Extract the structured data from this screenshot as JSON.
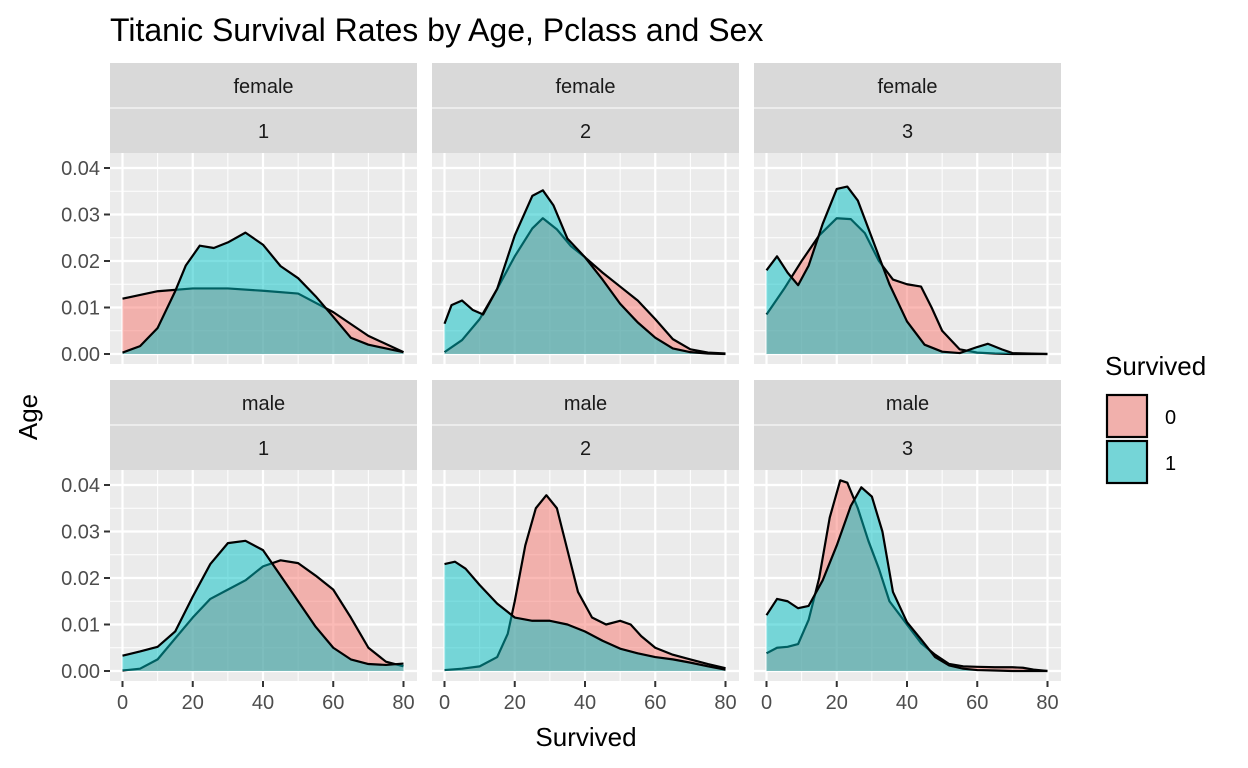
{
  "chart_data": {
    "type": "area",
    "subtype": "faceted density",
    "title": "Titanic Survival Rates by Age, Pclass and Sex",
    "xlabel": "Survived",
    "ylabel": "Age",
    "xlim": [
      0,
      80
    ],
    "ylim": [
      0,
      0.04
    ],
    "x_ticks": [
      0,
      20,
      40,
      60,
      80
    ],
    "y_ticks": [
      0,
      0.01,
      0.02,
      0.03,
      0.04
    ],
    "y_tick_labels": [
      "0.00",
      "0.01",
      "0.02",
      "0.03",
      "0.04"
    ],
    "grid": true,
    "legend": {
      "title": "Survived",
      "placement": "right",
      "entries": [
        {
          "label": "0",
          "color": "#F8766D"
        },
        {
          "label": "1",
          "color": "#00BFC4"
        }
      ]
    },
    "colors": {
      "panel_bg": "#EBEBEB",
      "strip_bg": "#D9D9D9",
      "grid": "#FFFFFF",
      "outline": "#000000"
    },
    "x_grid": [
      0,
      5,
      10,
      15,
      20,
      25,
      30,
      35,
      40,
      45,
      50,
      55,
      60,
      65,
      70,
      75,
      80
    ],
    "facets": [
      {
        "sex": "female",
        "pclass": "1",
        "series": [
          {
            "name": "0",
            "points": [
              [
                0,
                0.0119
              ],
              [
                10,
                0.0135
              ],
              [
                20,
                0.0141
              ],
              [
                30,
                0.0141
              ],
              [
                40,
                0.0136
              ],
              [
                50,
                0.013
              ],
              [
                60,
                0.009
              ],
              [
                70,
                0.0039
              ],
              [
                80,
                0.0004
              ]
            ]
          },
          {
            "name": "1",
            "points": [
              [
                0,
                0.0003
              ],
              [
                5,
                0.0017
              ],
              [
                10,
                0.0056
              ],
              [
                15,
                0.0135
              ],
              [
                18,
                0.019
              ],
              [
                22,
                0.0233
              ],
              [
                26,
                0.0228
              ],
              [
                30,
                0.024
              ],
              [
                35,
                0.0261
              ],
              [
                40,
                0.0235
              ],
              [
                45,
                0.0189
              ],
              [
                50,
                0.0163
              ],
              [
                55,
                0.0124
              ],
              [
                60,
                0.008
              ],
              [
                65,
                0.0035
              ],
              [
                70,
                0.002
              ],
              [
                75,
                0.0012
              ],
              [
                80,
                0.0004
              ]
            ]
          }
        ]
      },
      {
        "sex": "female",
        "pclass": "2",
        "series": [
          {
            "name": "0",
            "points": [
              [
                0,
                0.0004
              ],
              [
                5,
                0.003
              ],
              [
                10,
                0.0075
              ],
              [
                15,
                0.014
              ],
              [
                20,
                0.021
              ],
              [
                25,
                0.027
              ],
              [
                28,
                0.0292
              ],
              [
                32,
                0.0268
              ],
              [
                36,
                0.0232
              ],
              [
                40,
                0.0208
              ],
              [
                45,
                0.0175
              ],
              [
                50,
                0.0145
              ],
              [
                55,
                0.0115
              ],
              [
                60,
                0.0075
              ],
              [
                65,
                0.0032
              ],
              [
                70,
                0.001
              ],
              [
                75,
                0.0003
              ],
              [
                80,
                0.0001
              ]
            ]
          },
          {
            "name": "1",
            "points": [
              [
                0,
                0.0065
              ],
              [
                2,
                0.0105
              ],
              [
                5,
                0.0115
              ],
              [
                8,
                0.0095
              ],
              [
                11,
                0.0085
              ],
              [
                15,
                0.014
              ],
              [
                20,
                0.0255
              ],
              [
                25,
                0.034
              ],
              [
                28,
                0.0352
              ],
              [
                31,
                0.032
              ],
              [
                35,
                0.0248
              ],
              [
                40,
                0.0208
              ],
              [
                45,
                0.016
              ],
              [
                50,
                0.0108
              ],
              [
                55,
                0.0068
              ],
              [
                60,
                0.0035
              ],
              [
                65,
                0.0012
              ],
              [
                70,
                0.0004
              ],
              [
                75,
                0.0001
              ],
              [
                80,
                0.0
              ]
            ]
          }
        ]
      },
      {
        "sex": "female",
        "pclass": "3",
        "series": [
          {
            "name": "0",
            "points": [
              [
                0,
                0.0085
              ],
              [
                5,
                0.014
              ],
              [
                10,
                0.02
              ],
              [
                15,
                0.0255
              ],
              [
                20,
                0.0292
              ],
              [
                24,
                0.029
              ],
              [
                28,
                0.026
              ],
              [
                32,
                0.02
              ],
              [
                36,
                0.016
              ],
              [
                40,
                0.015
              ],
              [
                44,
                0.0145
              ],
              [
                47,
                0.01
              ],
              [
                50,
                0.005
              ],
              [
                55,
                0.001
              ],
              [
                60,
                0.0003
              ],
              [
                65,
                0.0001
              ],
              [
                70,
                0.0
              ],
              [
                80,
                0.0
              ]
            ]
          },
          {
            "name": "1",
            "points": [
              [
                0,
                0.018
              ],
              [
                3,
                0.021
              ],
              [
                6,
                0.0175
              ],
              [
                9,
                0.0148
              ],
              [
                12,
                0.019
              ],
              [
                16,
                0.028
              ],
              [
                20,
                0.0355
              ],
              [
                23,
                0.036
              ],
              [
                26,
                0.033
              ],
              [
                30,
                0.025
              ],
              [
                35,
                0.015
              ],
              [
                40,
                0.007
              ],
              [
                45,
                0.002
              ],
              [
                50,
                0.0005
              ],
              [
                55,
                0.0002
              ],
              [
                60,
                0.0015
              ],
              [
                63,
                0.0022
              ],
              [
                67,
                0.001
              ],
              [
                70,
                0.0002
              ],
              [
                80,
                0.0
              ]
            ]
          }
        ]
      },
      {
        "sex": "male",
        "pclass": "1",
        "series": [
          {
            "name": "0",
            "points": [
              [
                0,
                0.0001
              ],
              [
                5,
                0.0005
              ],
              [
                10,
                0.0025
              ],
              [
                15,
                0.007
              ],
              [
                20,
                0.0115
              ],
              [
                25,
                0.0155
              ],
              [
                30,
                0.0175
              ],
              [
                35,
                0.0195
              ],
              [
                40,
                0.0225
              ],
              [
                45,
                0.0238
              ],
              [
                50,
                0.0232
              ],
              [
                55,
                0.0205
              ],
              [
                60,
                0.0175
              ],
              [
                65,
                0.0115
              ],
              [
                70,
                0.005
              ],
              [
                75,
                0.002
              ],
              [
                80,
                0.001
              ]
            ]
          },
          {
            "name": "1",
            "points": [
              [
                0,
                0.0033
              ],
              [
                5,
                0.0042
              ],
              [
                10,
                0.0052
              ],
              [
                15,
                0.0085
              ],
              [
                20,
                0.016
              ],
              [
                25,
                0.023
              ],
              [
                30,
                0.0275
              ],
              [
                35,
                0.028
              ],
              [
                40,
                0.026
              ],
              [
                45,
                0.0205
              ],
              [
                50,
                0.015
              ],
              [
                55,
                0.0095
              ],
              [
                60,
                0.005
              ],
              [
                65,
                0.0025
              ],
              [
                70,
                0.0015
              ],
              [
                75,
                0.0013
              ],
              [
                80,
                0.0016
              ]
            ]
          }
        ]
      },
      {
        "sex": "male",
        "pclass": "2",
        "series": [
          {
            "name": "0",
            "points": [
              [
                0,
                0.0002
              ],
              [
                5,
                0.0005
              ],
              [
                10,
                0.001
              ],
              [
                15,
                0.003
              ],
              [
                18,
                0.008
              ],
              [
                20,
                0.015
              ],
              [
                23,
                0.027
              ],
              [
                26,
                0.035
              ],
              [
                29,
                0.0378
              ],
              [
                32,
                0.035
              ],
              [
                35,
                0.026
              ],
              [
                38,
                0.017
              ],
              [
                42,
                0.0115
              ],
              [
                46,
                0.01
              ],
              [
                50,
                0.0108
              ],
              [
                53,
                0.01
              ],
              [
                56,
                0.0075
              ],
              [
                60,
                0.005
              ],
              [
                65,
                0.0035
              ],
              [
                70,
                0.0025
              ],
              [
                75,
                0.0015
              ],
              [
                80,
                0.0006
              ]
            ]
          },
          {
            "name": "1",
            "points": [
              [
                0,
                0.023
              ],
              [
                3,
                0.0235
              ],
              [
                6,
                0.022
              ],
              [
                10,
                0.0185
              ],
              [
                15,
                0.0145
              ],
              [
                20,
                0.0115
              ],
              [
                25,
                0.0108
              ],
              [
                30,
                0.0108
              ],
              [
                35,
                0.01
              ],
              [
                40,
                0.0085
              ],
              [
                45,
                0.0065
              ],
              [
                50,
                0.0048
              ],
              [
                55,
                0.0038
              ],
              [
                60,
                0.003
              ],
              [
                65,
                0.0025
              ],
              [
                70,
                0.0018
              ],
              [
                75,
                0.001
              ],
              [
                80,
                0.0003
              ]
            ]
          }
        ]
      },
      {
        "sex": "male",
        "pclass": "3",
        "series": [
          {
            "name": "0",
            "points": [
              [
                0,
                0.0038
              ],
              [
                3,
                0.005
              ],
              [
                6,
                0.0052
              ],
              [
                9,
                0.0058
              ],
              [
                12,
                0.011
              ],
              [
                15,
                0.02
              ],
              [
                18,
                0.033
              ],
              [
                21,
                0.041
              ],
              [
                23,
                0.0405
              ],
              [
                26,
                0.035
              ],
              [
                29,
                0.028
              ],
              [
                32,
                0.022
              ],
              [
                35,
                0.015
              ],
              [
                38,
                0.012
              ],
              [
                41,
                0.009
              ],
              [
                44,
                0.006
              ],
              [
                48,
                0.0035
              ],
              [
                52,
                0.0015
              ],
              [
                56,
                0.001
              ],
              [
                60,
                0.0009
              ],
              [
                65,
                0.0008
              ],
              [
                70,
                0.0008
              ],
              [
                73,
                0.0007
              ],
              [
                76,
                0.0003
              ],
              [
                80,
                0.0
              ]
            ]
          },
          {
            "name": "1",
            "points": [
              [
                0,
                0.012
              ],
              [
                3,
                0.0155
              ],
              [
                6,
                0.015
              ],
              [
                9,
                0.0135
              ],
              [
                12,
                0.014
              ],
              [
                16,
                0.0195
              ],
              [
                20,
                0.027
              ],
              [
                24,
                0.0355
              ],
              [
                27,
                0.0395
              ],
              [
                30,
                0.0375
              ],
              [
                33,
                0.03
              ],
              [
                36,
                0.017
              ],
              [
                40,
                0.0105
              ],
              [
                44,
                0.0068
              ],
              [
                48,
                0.003
              ],
              [
                52,
                0.0012
              ],
              [
                56,
                0.0005
              ],
              [
                60,
                0.0002
              ],
              [
                65,
                0.0001
              ],
              [
                70,
                0.0
              ],
              [
                80,
                0.0
              ]
            ]
          }
        ]
      }
    ]
  }
}
